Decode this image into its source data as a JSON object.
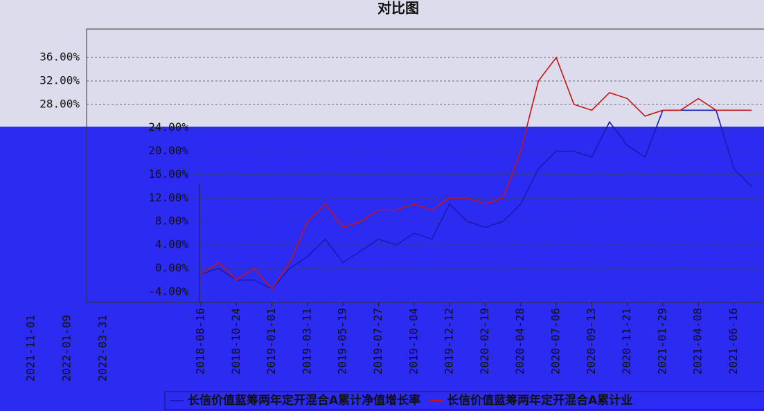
{
  "chart_data": {
    "type": "line",
    "title": "对比图",
    "categories": [
      "2018-08-16",
      null,
      "2018-10-24",
      null,
      "2019-01-01",
      null,
      "2019-03-11",
      null,
      "2019-05-19",
      null,
      "2019-07-27",
      null,
      "2019-10-04",
      null,
      "2019-12-12",
      null,
      "2020-02-19",
      null,
      "2020-04-28",
      null,
      "2020-07-06",
      null,
      "2020-09-13",
      null,
      "2020-11-21",
      null,
      "2021-01-29",
      null,
      "2021-04-08",
      null,
      "2021-06-16",
      null
    ],
    "extra_x_labels": [
      "2021-11-01",
      "2022-01-09",
      "2022-03-31"
    ],
    "series": [
      {
        "name": "长信价值蓝筹两年定开混合A累计净值增长率",
        "color": "#1a1ab8",
        "values": [
          -1,
          0,
          -2,
          -2,
          -3.5,
          0,
          2,
          5,
          1,
          3,
          5,
          4,
          6,
          5,
          11,
          8,
          7,
          8,
          11,
          17,
          20,
          20,
          19,
          25,
          21,
          19,
          27,
          27,
          27,
          27,
          17,
          14
        ]
      },
      {
        "name": "长信价值蓝筹两年定开混合A累计业",
        "color": "#c81414",
        "values": [
          -1,
          1,
          -2,
          0,
          -3.5,
          1,
          8,
          11,
          7,
          8,
          10,
          10,
          11,
          10,
          12,
          12,
          11,
          12,
          20,
          32,
          36,
          28,
          27,
          30,
          29,
          26,
          27,
          27,
          29,
          27,
          27,
          27
        ]
      }
    ],
    "ylim": [
      -6,
      40
    ],
    "yticks": [
      {
        "value": -4,
        "label": "-4.00%"
      },
      {
        "value": 0,
        "label": "0.00%"
      },
      {
        "value": 4,
        "label": "4.00%"
      },
      {
        "value": 8,
        "label": "8.00%"
      },
      {
        "value": 12,
        "label": "12.00%"
      },
      {
        "value": 16,
        "label": "16.00%"
      },
      {
        "value": 20,
        "label": "20.00%"
      },
      {
        "value": 24,
        "label": "24.00%"
      },
      {
        "value": 28,
        "label": "28.00%"
      },
      {
        "value": 32,
        "label": "32.00%"
      },
      {
        "value": 36,
        "label": "36.00%"
      }
    ],
    "grid": true
  }
}
